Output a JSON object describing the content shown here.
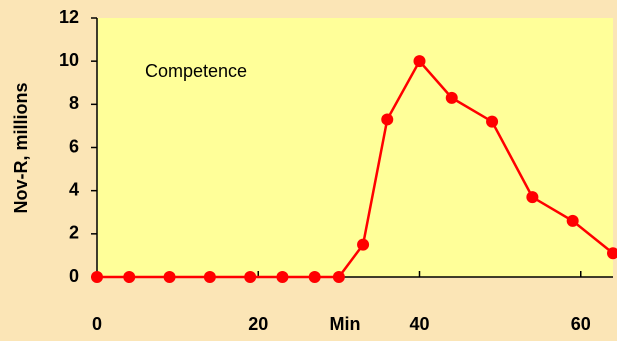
{
  "chart_data": {
    "type": "line",
    "x": [
      0,
      4,
      9,
      14,
      19,
      23,
      27,
      30,
      33,
      36,
      40,
      44,
      49,
      54,
      59,
      64
    ],
    "series": [
      {
        "color": "#ff0000",
        "values": [
          0,
          0,
          0,
          0,
          0,
          0,
          0,
          0,
          1.5,
          7.3,
          10.0,
          8.3,
          7.2,
          3.7,
          2.6,
          1.1
        ]
      }
    ],
    "xlabel": "Min",
    "ylabel": "Nov-R, millions",
    "annotation": "Competence",
    "xlim": [
      0,
      64
    ],
    "xticks": [
      0,
      20,
      40,
      60
    ],
    "ylim": [
      0,
      12
    ],
    "yticks": [
      0,
      2,
      4,
      6,
      8,
      10,
      12
    ],
    "plot_background": "#ffff99",
    "background": "#fbe5b6"
  }
}
